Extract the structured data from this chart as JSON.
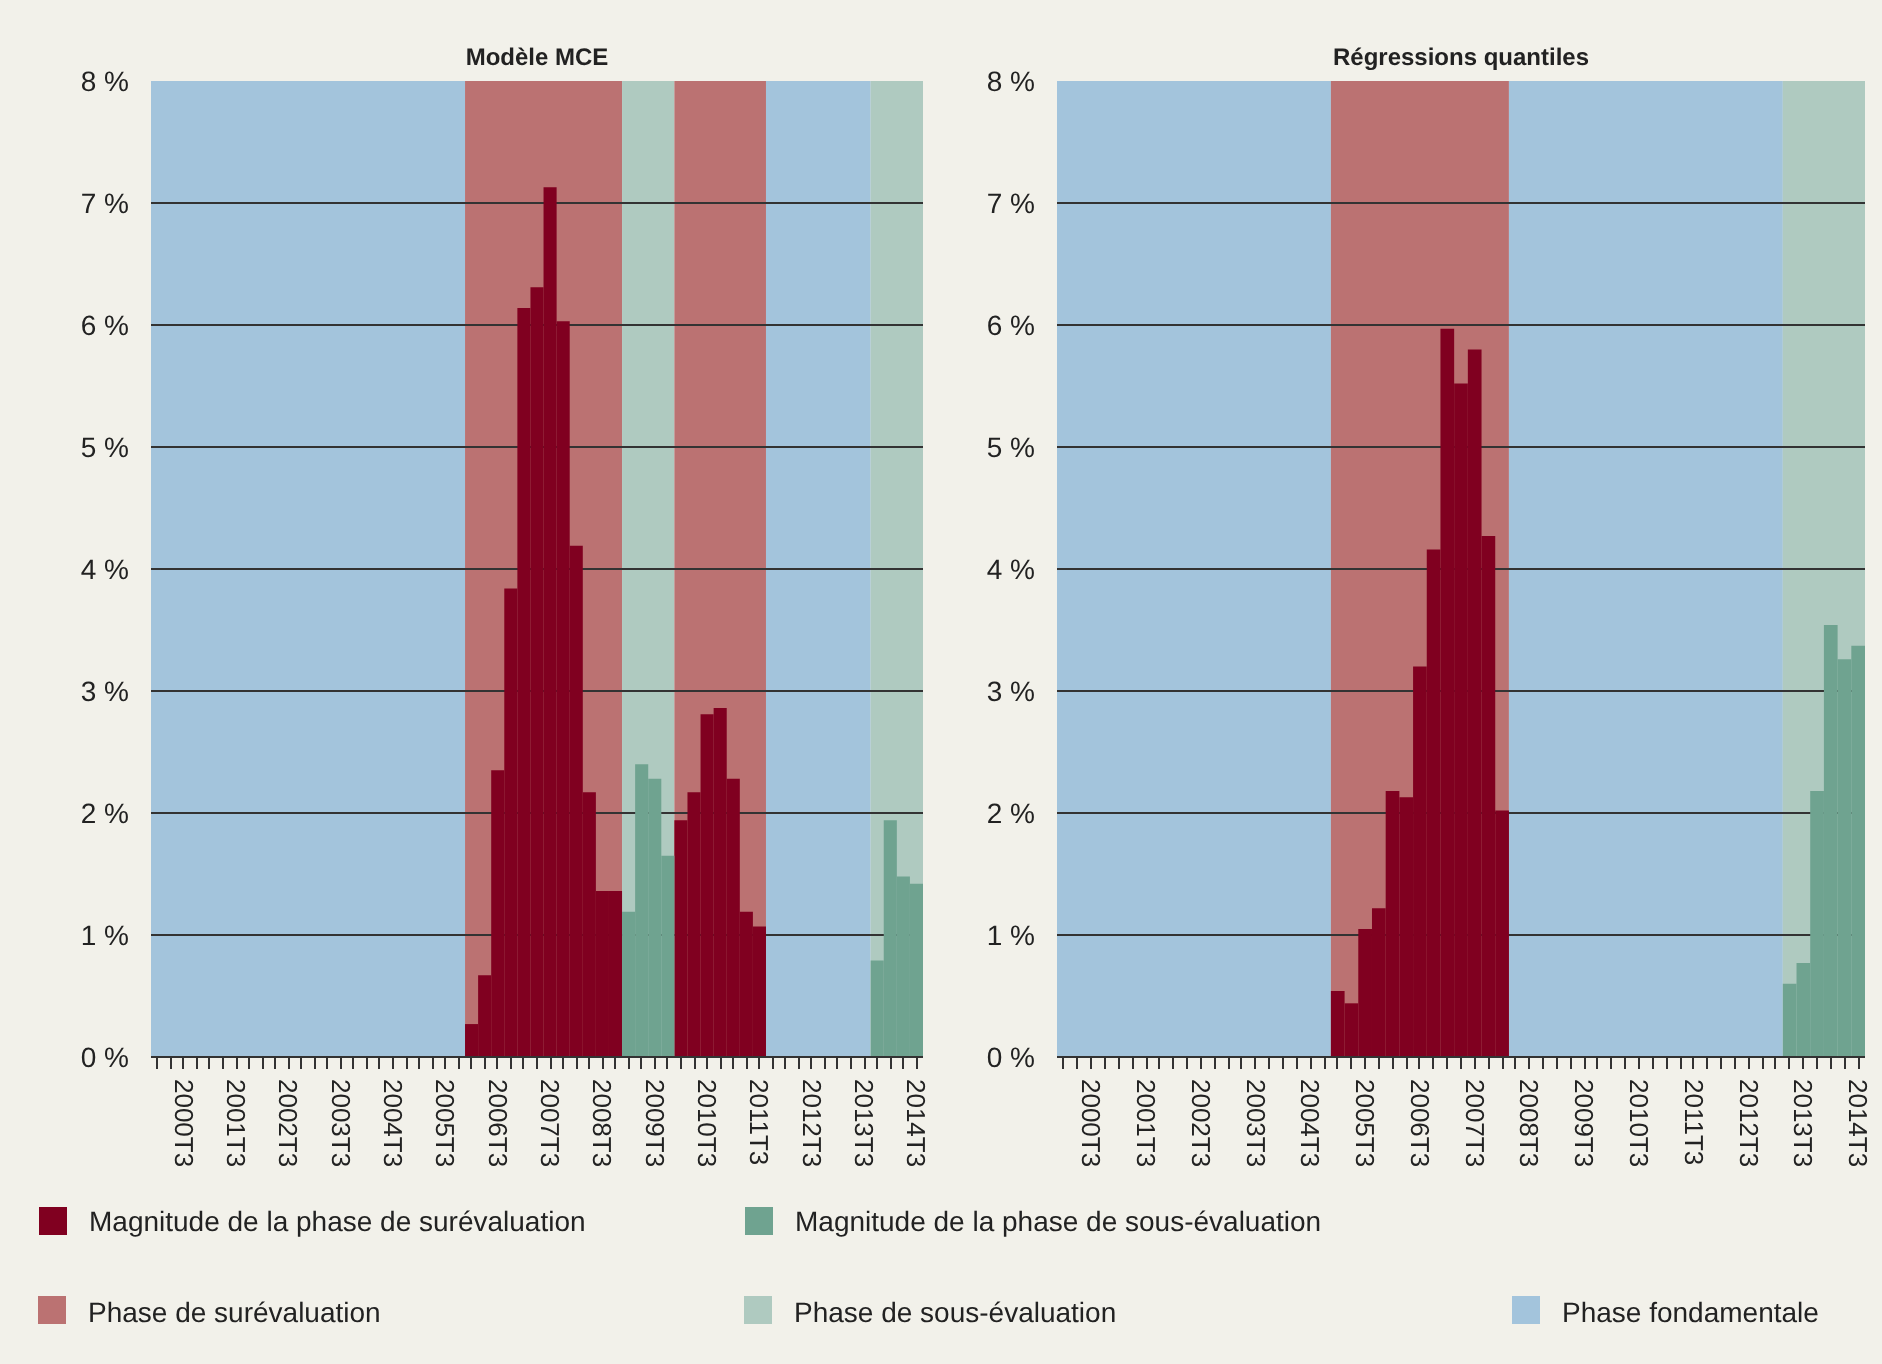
{
  "chart_data": [
    {
      "type": "bar",
      "title": "Modèle MCE",
      "ylim": [
        0,
        8
      ],
      "grid": "y",
      "legend": "bottom",
      "yticks": [
        {
          "value": 0,
          "label": "0 %"
        },
        {
          "value": 1,
          "label": "1 %"
        },
        {
          "value": 2,
          "label": "2 %"
        },
        {
          "value": 3,
          "label": "3 %"
        },
        {
          "value": 4,
          "label": "4 %"
        },
        {
          "value": 5,
          "label": "5 %"
        },
        {
          "value": 6,
          "label": "6 %"
        },
        {
          "value": 7,
          "label": "7 %"
        },
        {
          "value": 8,
          "label": "8 %"
        }
      ],
      "categories": [
        null,
        null,
        "2000T3",
        null,
        null,
        null,
        "2001T3",
        null,
        null,
        null,
        "2002T3",
        null,
        null,
        null,
        "2003T3",
        null,
        null,
        null,
        "2004T3",
        null,
        null,
        null,
        "2005T3",
        null,
        null,
        null,
        "2006T3",
        null,
        null,
        null,
        "2007T3",
        null,
        null,
        null,
        "2008T3",
        null,
        null,
        null,
        "2009T3",
        null,
        null,
        null,
        "2010T3",
        null,
        null,
        null,
        "2011T3",
        null,
        null,
        null,
        "2012T3",
        null,
        null,
        null,
        "2013T3",
        null,
        null,
        null,
        "2014T3"
      ],
      "annotations": [
        "Phase de surévaluation",
        "Phase de sous-évaluation",
        "Phase fondamentale"
      ],
      "series": [
        {
          "name": "Magnitude de la phase de surévaluation",
          "color": "#800020",
          "values": [
            null,
            null,
            null,
            null,
            null,
            null,
            null,
            null,
            null,
            null,
            null,
            null,
            null,
            null,
            null,
            null,
            null,
            null,
            null,
            null,
            null,
            null,
            null,
            null,
            0.27,
            0.67,
            2.35,
            3.84,
            6.14,
            6.31,
            7.13,
            6.03,
            4.19,
            2.17,
            1.36,
            1.36,
            null,
            null,
            null,
            null,
            1.94,
            2.17,
            2.81,
            2.86,
            2.28,
            1.19,
            1.07,
            null,
            null,
            null,
            null,
            null,
            null,
            null,
            null,
            null,
            null,
            null,
            null
          ]
        },
        {
          "name": "Magnitude de la phase de sous-évaluation",
          "color": "#6fa390",
          "values": [
            null,
            null,
            null,
            null,
            null,
            null,
            null,
            null,
            null,
            null,
            null,
            null,
            null,
            null,
            null,
            null,
            null,
            null,
            null,
            null,
            null,
            null,
            null,
            null,
            null,
            null,
            null,
            null,
            null,
            null,
            null,
            null,
            null,
            null,
            null,
            null,
            1.19,
            2.4,
            2.28,
            1.65,
            null,
            null,
            null,
            null,
            null,
            null,
            null,
            null,
            null,
            null,
            null,
            null,
            null,
            null,
            null,
            0.79,
            1.94,
            1.48,
            1.42
          ]
        }
      ]
    },
    {
      "type": "bar",
      "title": "Régressions quantiles",
      "ylim": [
        0,
        8
      ],
      "grid": "y",
      "yticks": [
        {
          "value": 0,
          "label": "0 %"
        },
        {
          "value": 1,
          "label": "1 %"
        },
        {
          "value": 2,
          "label": "2 %"
        },
        {
          "value": 3,
          "label": "3 %"
        },
        {
          "value": 4,
          "label": "4 %"
        },
        {
          "value": 5,
          "label": "5 %"
        },
        {
          "value": 6,
          "label": "6 %"
        },
        {
          "value": 7,
          "label": "7 %"
        },
        {
          "value": 8,
          "label": "8 %"
        }
      ],
      "categories": [
        null,
        null,
        "2000T3",
        null,
        null,
        null,
        "2001T3",
        null,
        null,
        null,
        "2002T3",
        null,
        null,
        null,
        "2003T3",
        null,
        null,
        null,
        "2004T3",
        null,
        null,
        null,
        "2005T3",
        null,
        null,
        null,
        "2006T3",
        null,
        null,
        null,
        "2007T3",
        null,
        null,
        null,
        "2008T3",
        null,
        null,
        null,
        "2009T3",
        null,
        null,
        null,
        "2010T3",
        null,
        null,
        null,
        "2011T3",
        null,
        null,
        null,
        "2012T3",
        null,
        null,
        null,
        "2013T3",
        null,
        null,
        null,
        "2014T3"
      ],
      "series": [
        {
          "color": "#800020",
          "values": [
            null,
            null,
            null,
            null,
            null,
            null,
            null,
            null,
            null,
            null,
            null,
            null,
            null,
            null,
            null,
            null,
            null,
            null,
            null,
            null,
            0.54,
            0.44,
            1.05,
            1.22,
            2.18,
            2.13,
            3.2,
            4.16,
            5.97,
            5.52,
            5.8,
            4.27,
            2.02,
            null,
            null,
            null,
            null,
            null,
            null,
            null,
            null,
            null,
            null,
            null,
            null,
            null,
            null,
            null,
            null,
            null,
            null,
            null,
            null,
            null,
            null,
            null,
            null,
            null,
            null
          ]
        },
        {
          "color": "#6fa390",
          "values": [
            null,
            null,
            null,
            null,
            null,
            null,
            null,
            null,
            null,
            null,
            null,
            null,
            null,
            null,
            null,
            null,
            null,
            null,
            null,
            null,
            null,
            null,
            null,
            null,
            null,
            null,
            null,
            null,
            null,
            null,
            null,
            null,
            null,
            null,
            null,
            null,
            null,
            null,
            null,
            null,
            null,
            null,
            null,
            null,
            null,
            null,
            null,
            null,
            null,
            null,
            null,
            null,
            null,
            0.6,
            0.77,
            2.18,
            3.54,
            3.26,
            3.37
          ]
        }
      ]
    }
  ]
}
